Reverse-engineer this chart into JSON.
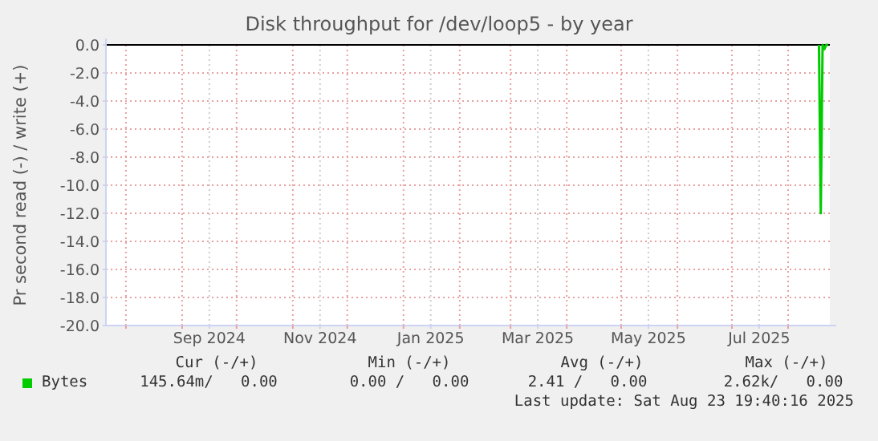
{
  "chart_data": {
    "type": "line",
    "title": "Disk throughput for /dev/loop5 - by year",
    "ylabel": "Pr second read (-) / write (+)",
    "xlim": [
      "2024-07-21",
      "2025-08-24"
    ],
    "xticks": [
      {
        "value": "2024-08-01",
        "label": null
      },
      {
        "value": "2024-09-01",
        "label": null
      },
      {
        "value": "2024-09-16",
        "label": "Sep 2024"
      },
      {
        "value": "2024-10-01",
        "label": null
      },
      {
        "value": "2024-11-01",
        "label": null
      },
      {
        "value": "2024-11-16",
        "label": "Nov 2024"
      },
      {
        "value": "2024-12-01",
        "label": null
      },
      {
        "value": "2025-01-01",
        "label": null
      },
      {
        "value": "2025-01-16",
        "label": "Jan 2025"
      },
      {
        "value": "2025-02-01",
        "label": null
      },
      {
        "value": "2025-03-01",
        "label": null
      },
      {
        "value": "2025-03-16",
        "label": "Mar 2025"
      },
      {
        "value": "2025-04-01",
        "label": null
      },
      {
        "value": "2025-05-01",
        "label": null
      },
      {
        "value": "2025-05-16",
        "label": "May 2025"
      },
      {
        "value": "2025-06-01",
        "label": null
      },
      {
        "value": "2025-07-01",
        "label": null
      },
      {
        "value": "2025-07-16",
        "label": "Jul 2025"
      },
      {
        "value": "2025-08-01",
        "label": null
      }
    ],
    "ylim": [
      -20,
      0
    ],
    "yticks": [
      {
        "value": 0,
        "label": "0.0"
      },
      {
        "value": -2,
        "label": "-2.0"
      },
      {
        "value": -4,
        "label": "-4.0"
      },
      {
        "value": -6,
        "label": "-6.0"
      },
      {
        "value": -8,
        "label": "-8.0"
      },
      {
        "value": -10,
        "label": "-10.0"
      },
      {
        "value": -12,
        "label": "-12.0"
      },
      {
        "value": -14,
        "label": "-14.0"
      },
      {
        "value": -16,
        "label": "-16.0"
      },
      {
        "value": -18,
        "label": "-18.0"
      },
      {
        "value": -20,
        "label": "-20.0"
      }
    ],
    "grid": true,
    "legend": "bottom left",
    "ref_lines": [
      {
        "axis": "y",
        "value": 0,
        "color": "#000000"
      }
    ],
    "series": [
      {
        "name": "Bytes",
        "color": "#00cc00",
        "x": [
          "2025-08-18",
          "2025-08-19",
          "2025-08-20",
          "2025-08-21",
          "2025-08-22",
          "2025-08-23"
        ],
        "values": [
          0,
          -12,
          0,
          -0.3,
          0,
          0
        ]
      }
    ],
    "annotations": [
      "Cur (-/+)",
      "Min (-/+)",
      "Avg (-/+)",
      "Max (-/+)",
      "145.64m/   0.00",
      "0.00 /   0.00",
      "2.41 /   0.00",
      "2.62k/   0.00",
      "Last update: Sat Aug 23 19:40:16 2025"
    ]
  }
}
